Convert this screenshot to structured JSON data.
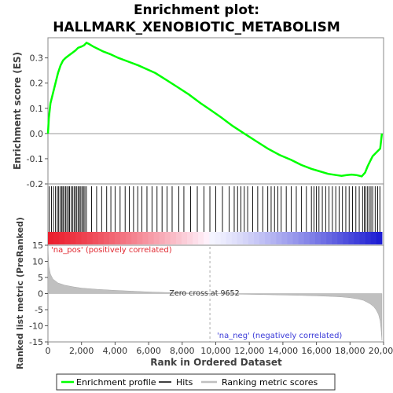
{
  "title_line1": "Enrichment plot:",
  "title_line2": "HALLMARK_XENOBIOTIC_METABOLISM",
  "chart_data": {
    "type": "line",
    "es_panel": {
      "ylabel": "Enrichment score (ES)",
      "ylim": [
        -0.2,
        0.38
      ],
      "yticks": [
        -0.2,
        -0.1,
        0.0,
        0.1,
        0.2,
        0.3
      ],
      "ytick_labels": [
        "-0.2",
        "-0.1",
        "0.0",
        "0.1",
        "0.2",
        "0.3"
      ],
      "series_name": "Enrichment profile",
      "color": "#00ff00",
      "x": [
        0,
        50,
        150,
        300,
        450,
        600,
        750,
        900,
        1050,
        1250,
        1450,
        1650,
        1800,
        2000,
        2150,
        2300,
        2450,
        2700,
        3000,
        3300,
        3700,
        4200,
        4800,
        5400,
        5900,
        6400,
        7000,
        7700,
        8400,
        9100,
        9652,
        10300,
        11000,
        11700,
        12400,
        13100,
        13800,
        14500,
        15100,
        15700,
        16200,
        16700,
        17200,
        17500,
        17800,
        18100,
        18400,
        18700,
        18900,
        19050,
        19200,
        19350,
        19500,
        19650,
        19800,
        19850,
        19900
      ],
      "y": [
        0.0,
        0.06,
        0.12,
        0.16,
        0.2,
        0.24,
        0.27,
        0.29,
        0.3,
        0.31,
        0.32,
        0.33,
        0.34,
        0.345,
        0.35,
        0.36,
        0.355,
        0.345,
        0.335,
        0.325,
        0.315,
        0.3,
        0.285,
        0.27,
        0.255,
        0.24,
        0.215,
        0.185,
        0.155,
        0.12,
        0.095,
        0.065,
        0.03,
        0.0,
        -0.03,
        -0.06,
        -0.085,
        -0.105,
        -0.125,
        -0.14,
        -0.15,
        -0.16,
        -0.165,
        -0.168,
        -0.165,
        -0.163,
        -0.165,
        -0.17,
        -0.155,
        -0.13,
        -0.11,
        -0.09,
        -0.08,
        -0.07,
        -0.06,
        -0.03,
        0.0
      ]
    },
    "hits_panel": {
      "label": "Hits",
      "positions": [
        80,
        210,
        330,
        450,
        560,
        640,
        730,
        820,
        890,
        950,
        1050,
        1130,
        1220,
        1290,
        1380,
        1470,
        1560,
        1640,
        1720,
        1810,
        1880,
        1960,
        2040,
        2120,
        2200,
        2290,
        2600,
        2900,
        3200,
        3500,
        3750,
        4000,
        4300,
        4600,
        4850,
        5100,
        5350,
        5600,
        5900,
        6200,
        6500,
        6800,
        7100,
        7400,
        7800,
        8100,
        8500,
        8900,
        9300,
        9650,
        10000,
        10400,
        10800,
        11100,
        11300,
        11500,
        11700,
        11900,
        12200,
        12500,
        12800,
        13100,
        13300,
        13500,
        13700,
        13900,
        14200,
        14500,
        14800,
        15100,
        15400,
        15700,
        15850,
        16000,
        16150,
        16350,
        16550,
        16750,
        16950,
        17150,
        17350,
        17550,
        17750,
        17950,
        18150,
        18350,
        18550,
        18750,
        18850,
        18950,
        19050,
        19150,
        19250,
        19350,
        19500,
        19650,
        19780
      ]
    },
    "metric_panel": {
      "ylabel": "Ranked list metric (PreRanked)",
      "ylim": [
        -15,
        15
      ],
      "yticks": [
        -15,
        -10,
        -5,
        0,
        5,
        10,
        15
      ],
      "ytick_labels": [
        "-15",
        "-10",
        "-5",
        "0",
        "5",
        "10",
        "15"
      ],
      "series_name": "Ranking metric scores",
      "x": [
        0,
        50,
        150,
        300,
        600,
        1000,
        1500,
        2000,
        3000,
        4000,
        5000,
        6000,
        7000,
        8000,
        9000,
        9652,
        10500,
        12000,
        13500,
        15000,
        16000,
        17000,
        17500,
        18000,
        18500,
        18800,
        19000,
        19200,
        19400,
        19550,
        19700,
        19800,
        19850,
        19900
      ],
      "y": [
        15,
        8.5,
        6,
        4.5,
        3.3,
        2.6,
        2.1,
        1.7,
        1.3,
        1.0,
        0.75,
        0.5,
        0.35,
        0.2,
        0.08,
        0.0,
        -0.1,
        -0.25,
        -0.4,
        -0.55,
        -0.7,
        -0.9,
        -1.05,
        -1.3,
        -1.7,
        -2.1,
        -2.6,
        -3.2,
        -4.0,
        -5.0,
        -6.5,
        -8.5,
        -11,
        -14.5
      ],
      "zero_cross_label": "Zero cross at 9652",
      "pos_label": "'na_pos' (positively correlated)",
      "neg_label": "'na_neg' (negatively correlated)"
    },
    "xaxis": {
      "xlabel": "Rank in Ordered Dataset",
      "xlim": [
        0,
        20000
      ],
      "xticks": [
        0,
        2000,
        4000,
        6000,
        8000,
        10000,
        12000,
        14000,
        16000,
        18000,
        20000
      ],
      "xtick_labels": [
        "0",
        "2,000",
        "4,000",
        "6,000",
        "8,000",
        "10,000",
        "12,000",
        "14,000",
        "16,000",
        "18,000",
        "20,000"
      ],
      "n_genes": 19900,
      "zero_cross": 9652
    },
    "legend": {
      "placement": "bottom",
      "items": [
        {
          "label": "Enrichment profile",
          "color": "#00ff00"
        },
        {
          "label": "Hits",
          "color": "#000000"
        },
        {
          "label": "Ranking metric scores",
          "color": "#c0c0c0"
        }
      ]
    }
  }
}
